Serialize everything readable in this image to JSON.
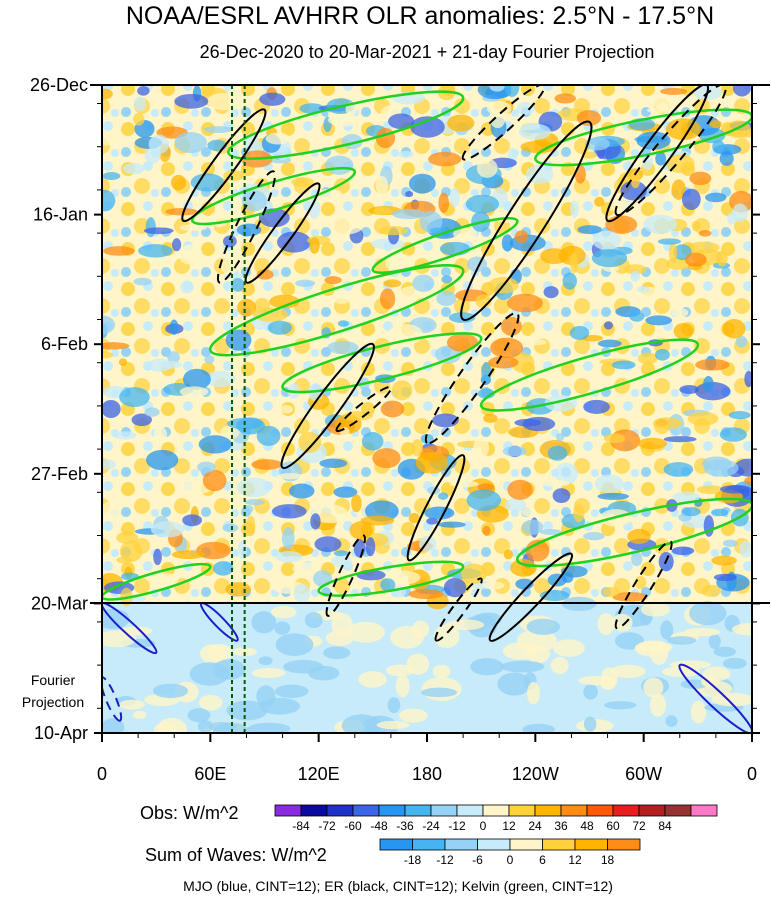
{
  "chart_data": {
    "type": "heatmap",
    "title": "NOAA/ESRL AVHRR OLR anomalies: 2.5°N - 17.5°N",
    "subtitle": "26-Dec-2020 to 20-Mar-2021 + 21-day Fourier Projection",
    "x_ticks": [
      "0",
      "60E",
      "120E",
      "180",
      "120W",
      "60W",
      "0"
    ],
    "x_tick_values": [
      0,
      60,
      120,
      180,
      240,
      300,
      360
    ],
    "xlim": [
      0,
      360
    ],
    "y_ticks": [
      "26-Dec",
      "16-Jan",
      "6-Feb",
      "27-Feb",
      "20-Mar",
      "10-Apr"
    ],
    "y_tick_days": [
      0,
      21,
      42,
      63,
      84,
      105
    ],
    "ylim_days": [
      0,
      105
    ],
    "projection_label": [
      "Fourier",
      "Projection"
    ],
    "projection_start_day": 84,
    "reference_lines_lon": [
      72,
      79
    ],
    "legend_obs": {
      "label": "Obs: W/m^2",
      "ticks": [
        "-84",
        "-72",
        "-60",
        "-48",
        "-36",
        "-24",
        "-12",
        "0",
        "12",
        "24",
        "36",
        "48",
        "60",
        "72",
        "84"
      ],
      "colors": [
        "#8a2be2",
        "#0a0a9e",
        "#1e32c8",
        "#3c64e6",
        "#2896f0",
        "#46b4f0",
        "#96d2f5",
        "#c8ebfa",
        "#fff5c8",
        "#ffd23c",
        "#ffb400",
        "#ff8c14",
        "#ff5a0a",
        "#e61e1e",
        "#b41e1e",
        "#963232",
        "#ff78c8"
      ]
    },
    "legend_waves": {
      "label": "Sum of Waves: W/m^2",
      "ticks": [
        "-18",
        "-12",
        "-6",
        "0",
        "6",
        "12",
        "18"
      ],
      "colors": [
        "#2896f0",
        "#46b4f0",
        "#96d2f5",
        "#c8ebfa",
        "#fff5c8",
        "#ffd23c",
        "#ffb400",
        "#ff8c14"
      ]
    },
    "contour_note": "MJO (blue, CINT=12); ER (black, CINT=12); Kelvin (green, CINT=12)",
    "contour_colors": {
      "mjo": "#1e1ec8",
      "er": "#000000",
      "kelvin": "#1ed21e"
    },
    "kelvin_bands": [
      {
        "lon": [
          70,
          200
        ],
        "day": [
          2,
          11
        ]
      },
      {
        "lon": [
          50,
          140
        ],
        "day": [
          14,
          22
        ]
      },
      {
        "lon": [
          150,
          230
        ],
        "day": [
          22,
          30
        ]
      },
      {
        "lon": [
          60,
          200
        ],
        "day": [
          30,
          43
        ]
      },
      {
        "lon": [
          100,
          210
        ],
        "day": [
          41,
          49
        ]
      },
      {
        "lon": [
          210,
          330
        ],
        "day": [
          42,
          52
        ]
      },
      {
        "lon": [
          240,
          360
        ],
        "day": [
          5,
          12
        ]
      },
      {
        "lon": [
          0,
          60
        ],
        "day": [
          78,
          83
        ]
      },
      {
        "lon": [
          120,
          200
        ],
        "day": [
          78,
          82
        ]
      },
      {
        "lon": [
          230,
          360
        ],
        "day": [
          68,
          77
        ]
      }
    ],
    "er_solid": [
      {
        "lon": [
          45,
          90
        ],
        "day": [
          4,
          22
        ]
      },
      {
        "lon": [
          80,
          120
        ],
        "day": [
          16,
          32
        ]
      },
      {
        "lon": [
          100,
          150
        ],
        "day": [
          42,
          62
        ]
      },
      {
        "lon": [
          200,
          270
        ],
        "day": [
          6,
          38
        ]
      },
      {
        "lon": [
          280,
          335
        ],
        "day": [
          0,
          22
        ]
      },
      {
        "lon": [
          170,
          200
        ],
        "day": [
          60,
          77
        ]
      },
      {
        "lon": [
          215,
          260
        ],
        "day": [
          76,
          90
        ]
      }
    ],
    "er_dashed": [
      {
        "lon": [
          200,
          245
        ],
        "day": [
          0,
          12
        ]
      },
      {
        "lon": [
          65,
          95
        ],
        "day": [
          14,
          32
        ]
      },
      {
        "lon": [
          180,
          230
        ],
        "day": [
          37,
          58
        ]
      },
      {
        "lon": [
          130,
          160
        ],
        "day": [
          49,
          56
        ]
      },
      {
        "lon": [
          285,
          345
        ],
        "day": [
          0,
          21
        ]
      },
      {
        "lon": [
          125,
          145
        ],
        "day": [
          73,
          86
        ]
      },
      {
        "lon": [
          185,
          210
        ],
        "day": [
          80,
          90
        ]
      },
      {
        "lon": [
          285,
          315
        ],
        "day": [
          74,
          88
        ]
      }
    ],
    "mjo_contours": [
      {
        "lon": [
          0,
          30
        ],
        "day": [
          84,
          92
        ]
      },
      {
        "lon": [
          55,
          75
        ],
        "day": [
          84,
          90
        ]
      },
      {
        "lon": [
          320,
          360
        ],
        "day": [
          94,
          105
        ]
      },
      {
        "lon": [
          0,
          10
        ],
        "day": [
          96,
          103
        ]
      }
    ]
  }
}
